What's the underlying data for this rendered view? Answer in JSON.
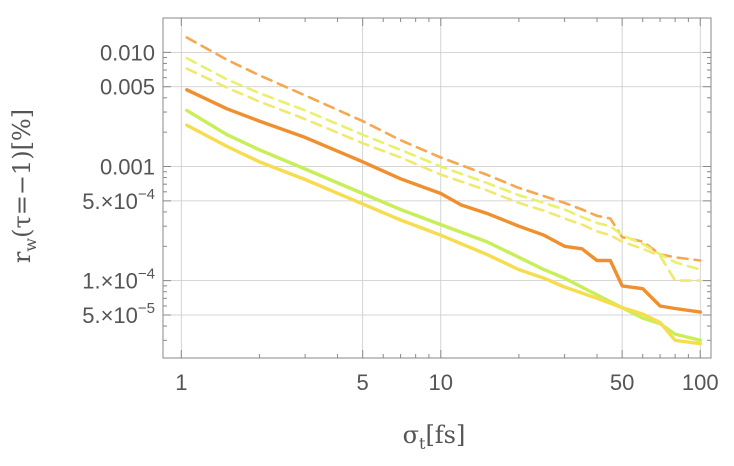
{
  "chart_data": {
    "type": "line",
    "title": "",
    "xlabel": "σ_t[fs]",
    "ylabel": "r_w(τ=−1)[%]",
    "x_scale": "log",
    "y_scale": "log",
    "xlim": [
      0.85,
      110
    ],
    "ylim": [
      2.1e-05,
      0.02
    ],
    "grid": true,
    "x_grid": [
      1,
      5,
      10,
      50,
      100
    ],
    "y_grid": [
      5e-05,
      0.0001,
      0.0005,
      0.001,
      0.005,
      0.01
    ],
    "x_ticks": [
      {
        "value": 1,
        "label": "1"
      },
      {
        "value": 5,
        "label": "5"
      },
      {
        "value": 10,
        "label": "10"
      },
      {
        "value": 50,
        "label": "50"
      },
      {
        "value": 100,
        "label": "100"
      }
    ],
    "y_ticks": [
      {
        "value": 0.01,
        "label": "0.010"
      },
      {
        "value": 0.005,
        "label": "0.005"
      },
      {
        "value": 0.001,
        "label": "0.001"
      },
      {
        "value": 0.0005,
        "label": "5.×10",
        "exp": "−4"
      },
      {
        "value": 0.0001,
        "label": "1.×10",
        "exp": "−4"
      },
      {
        "value": 5e-05,
        "label": "5.×10",
        "exp": "−5"
      }
    ],
    "series": [
      {
        "color": "#f5a84f",
        "dash": true,
        "x": [
          1.05,
          1.5,
          2,
          3,
          5,
          7,
          10,
          15,
          20,
          25,
          30,
          35,
          40,
          45,
          50,
          60,
          70,
          80,
          100
        ],
        "y": [
          0.0135,
          0.0086,
          0.0063,
          0.0042,
          0.0025,
          0.0017,
          0.0012,
          0.00085,
          0.00065,
          0.00055,
          0.00048,
          0.00042,
          0.00037,
          0.00035,
          0.00024,
          0.00022,
          0.00017,
          0.00016,
          0.00015
        ]
      },
      {
        "color": "#e9f06a",
        "dash": true,
        "x": [
          1.05,
          1.5,
          2,
          3,
          5,
          7,
          10,
          15,
          20,
          25,
          30,
          35,
          40,
          45,
          50,
          60,
          70,
          80,
          100
        ],
        "y": [
          0.0089,
          0.0058,
          0.0044,
          0.0031,
          0.0019,
          0.0014,
          0.001,
          0.00072,
          0.00056,
          0.00048,
          0.00042,
          0.00036,
          0.00032,
          0.0003,
          0.00025,
          0.00021,
          0.00017,
          0.000145,
          0.000125
        ]
      },
      {
        "color": "#f1e870",
        "dash": true,
        "x": [
          1.05,
          1.5,
          2,
          3,
          5,
          7,
          10,
          15,
          20,
          25,
          30,
          35,
          40,
          45,
          50,
          60,
          70,
          80,
          100
        ],
        "y": [
          0.0072,
          0.0049,
          0.0037,
          0.0026,
          0.0016,
          0.0012,
          0.00085,
          0.00062,
          0.00048,
          0.00041,
          0.00035,
          0.00031,
          0.00027,
          0.00025,
          0.00022,
          0.00019,
          0.000165,
          0.0001,
          0.0001
        ]
      },
      {
        "color": "#f08f2e",
        "dash": false,
        "x": [
          1.05,
          1.5,
          2,
          3,
          5,
          7,
          10,
          12,
          15,
          20,
          25,
          30,
          35,
          40,
          45,
          50,
          60,
          70,
          80,
          100
        ],
        "y": [
          0.0047,
          0.0032,
          0.0025,
          0.0018,
          0.0011,
          0.00078,
          0.00058,
          0.00046,
          0.00039,
          0.0003,
          0.00025,
          0.0002,
          0.00019,
          0.00015,
          0.00015,
          9e-05,
          8.5e-05,
          6e-05,
          5.7e-05,
          5.3e-05
        ]
      },
      {
        "color": "#c8ee58",
        "dash": false,
        "x": [
          1.05,
          1.5,
          2,
          3,
          5,
          7,
          10,
          15,
          20,
          25,
          30,
          40,
          50,
          60,
          70,
          80,
          100
        ],
        "y": [
          0.0031,
          0.0019,
          0.0014,
          0.00095,
          0.00058,
          0.00042,
          0.00031,
          0.00022,
          0.00016,
          0.000125,
          0.000105,
          7.5e-05,
          5.8e-05,
          4.7e-05,
          4.2e-05,
          3.4e-05,
          3e-05
        ]
      },
      {
        "color": "#f7dd4d",
        "dash": false,
        "x": [
          1.05,
          1.5,
          2,
          3,
          5,
          7,
          10,
          15,
          20,
          25,
          30,
          40,
          50,
          60,
          70,
          80,
          100
        ],
        "y": [
          0.0023,
          0.0015,
          0.0011,
          0.00077,
          0.00047,
          0.00034,
          0.00025,
          0.00017,
          0.000125,
          0.000105,
          8.8e-05,
          7e-05,
          5.8e-05,
          5.1e-05,
          4.3e-05,
          3e-05,
          2.8e-05
        ]
      }
    ]
  }
}
